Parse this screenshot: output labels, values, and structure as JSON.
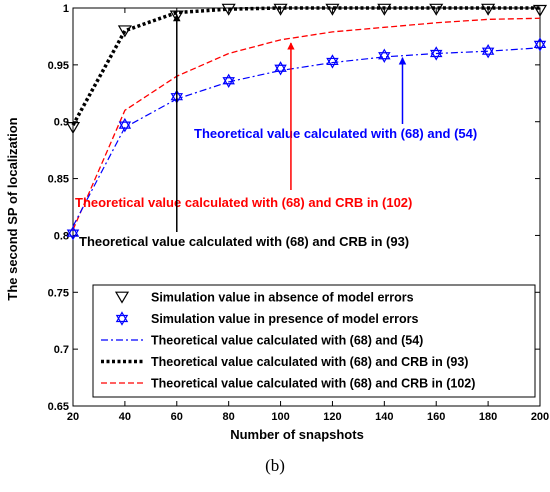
{
  "caption": "(b)",
  "chart_data": {
    "type": "line",
    "title": "",
    "xlabel": "Number of snapshots",
    "ylabel": "The second SP of localization",
    "xlim": [
      20,
      200
    ],
    "ylim": [
      0.65,
      1.0
    ],
    "xticks": [
      "20",
      "40",
      "60",
      "80",
      "100",
      "120",
      "140",
      "160",
      "180",
      "200"
    ],
    "yticks": [
      "0.65",
      "0.7",
      "0.75",
      "0.8",
      "0.85",
      "0.9",
      "0.95",
      "1"
    ],
    "grid": false,
    "legend_position": "bottom-right",
    "x": [
      20,
      40,
      60,
      80,
      100,
      120,
      140,
      160,
      180,
      200
    ],
    "series": [
      {
        "name": "Simulation value in absence of model errors",
        "style": "markers",
        "marker": "triangle-down",
        "color": "#000000",
        "values": [
          0.895,
          0.98,
          0.993,
          0.999,
          0.999,
          0.999,
          0.999,
          0.999,
          0.999,
          0.998
        ]
      },
      {
        "name": "Simulation value in presence of model errors",
        "style": "markers",
        "marker": "star",
        "color": "#0000ff",
        "values": [
          0.802,
          0.897,
          0.922,
          0.936,
          0.947,
          0.953,
          0.958,
          0.96,
          0.962,
          0.968
        ]
      },
      {
        "name": "Theoretical value calculated with (68) and (54)",
        "style": "dash-dot",
        "color": "#0000ff",
        "values": [
          0.808,
          0.895,
          0.92,
          0.935,
          0.945,
          0.952,
          0.957,
          0.96,
          0.962,
          0.965
        ]
      },
      {
        "name": "Theoretical value calculated with (68) and CRB in (93)",
        "style": "dotted-thick",
        "color": "#000000",
        "values": [
          0.897,
          0.98,
          0.996,
          0.999,
          1.0,
          1.0,
          1.0,
          1.0,
          1.0,
          1.0
        ]
      },
      {
        "name": "Theoretical value calculated with (68) and CRB in (102)",
        "style": "dashed",
        "color": "#ff0000",
        "values": [
          0.805,
          0.91,
          0.94,
          0.96,
          0.972,
          0.979,
          0.983,
          0.987,
          0.99,
          0.991
        ]
      }
    ],
    "annotations": [
      {
        "text": "Theoretical value calculated with (68) and (54)",
        "color": "#0000ff",
        "arrow_to": [
          147,
          0.958
        ],
        "text_at": [
          0,
          0.88
        ]
      },
      {
        "text": "Theoretical value calculated with (68) and CRB in (102)",
        "color": "#ff0000",
        "arrow_to": [
          104,
          0.971
        ],
        "text_at": [
          0,
          0.835
        ]
      },
      {
        "text": "Theoretical value calculated with (68) and CRB in (93)",
        "color": "#000000",
        "arrow_to": [
          60,
          0.996
        ],
        "text_at": [
          0,
          0.793
        ]
      }
    ]
  }
}
